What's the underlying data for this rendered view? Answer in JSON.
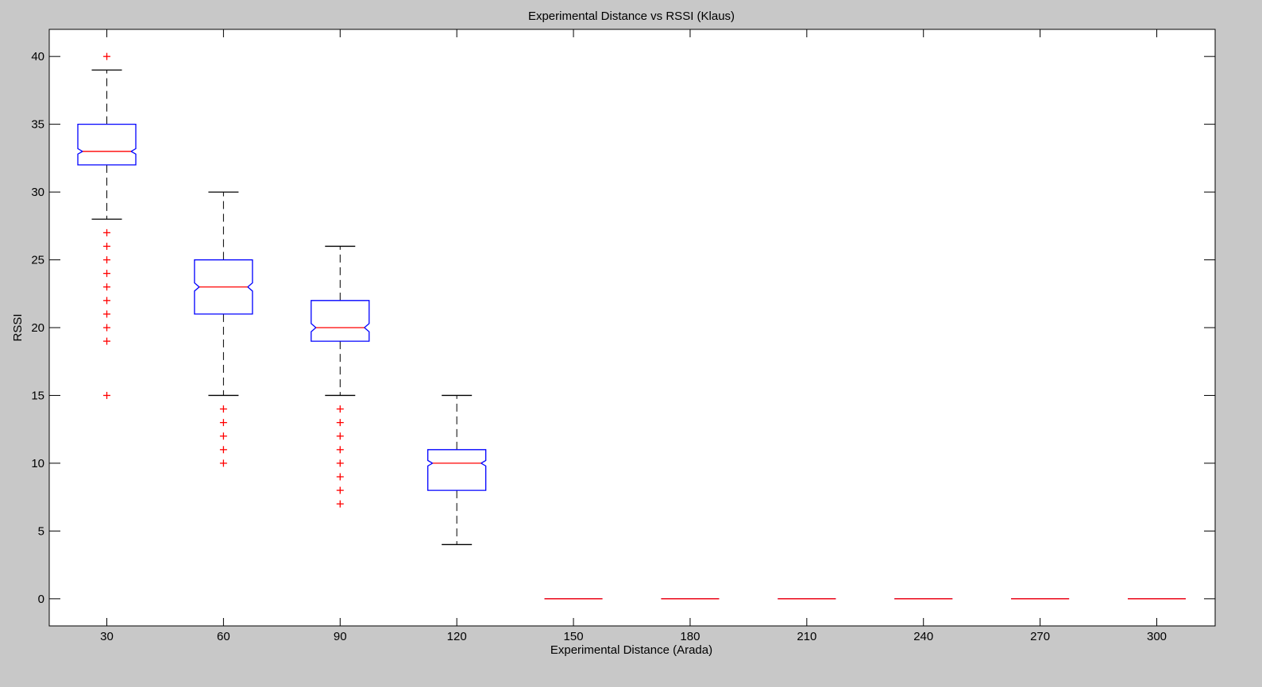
{
  "figure": {
    "background": "#c8c8c8",
    "axes_background": "#ffffff"
  },
  "chart_data": {
    "type": "box",
    "notched": true,
    "title": "Experimental Distance vs RSSI (Klaus)",
    "xlabel": "Experimental Distance (Arada)",
    "ylabel": "RSSI",
    "ylim": [
      -2,
      42
    ],
    "yticks": [
      0,
      5,
      10,
      15,
      20,
      25,
      30,
      35,
      40
    ],
    "grid": false,
    "colors": {
      "box": "#0000ff",
      "median": "#ff0000",
      "whisker": "#000000",
      "outlier": "#ff0000"
    },
    "categories": [
      "30",
      "60",
      "90",
      "120",
      "150",
      "180",
      "210",
      "240",
      "270",
      "300"
    ],
    "boxes": [
      {
        "category": "30",
        "whisker_low": 28,
        "q1": 32,
        "median": 33,
        "q3": 35,
        "whisker_high": 39,
        "notch_low": 32.8,
        "notch_high": 33.2,
        "outliers": [
          40,
          27,
          26,
          25,
          24,
          23,
          22,
          21,
          20,
          19,
          15
        ]
      },
      {
        "category": "60",
        "whisker_low": 15,
        "q1": 21,
        "median": 23,
        "q3": 25,
        "whisker_high": 30,
        "notch_low": 22.7,
        "notch_high": 23.3,
        "outliers": [
          14,
          13,
          12,
          11,
          10
        ]
      },
      {
        "category": "90",
        "whisker_low": 15,
        "q1": 19,
        "median": 20,
        "q3": 22,
        "whisker_high": 26,
        "notch_low": 19.7,
        "notch_high": 20.3,
        "outliers": [
          14,
          13,
          12,
          11,
          10,
          9,
          8,
          7
        ]
      },
      {
        "category": "120",
        "whisker_low": 4,
        "q1": 8,
        "median": 10,
        "q3": 11,
        "whisker_high": 15,
        "notch_low": 9.8,
        "notch_high": 10.2,
        "outliers": []
      },
      {
        "category": "150",
        "whisker_low": 0,
        "q1": 0,
        "median": 0,
        "q3": 0,
        "whisker_high": 0,
        "notch_low": 0,
        "notch_high": 0,
        "outliers": []
      },
      {
        "category": "180",
        "whisker_low": 0,
        "q1": 0,
        "median": 0,
        "q3": 0,
        "whisker_high": 0,
        "notch_low": 0,
        "notch_high": 0,
        "outliers": []
      },
      {
        "category": "210",
        "whisker_low": 0,
        "q1": 0,
        "median": 0,
        "q3": 0,
        "whisker_high": 0,
        "notch_low": 0,
        "notch_high": 0,
        "outliers": []
      },
      {
        "category": "240",
        "whisker_low": 0,
        "q1": 0,
        "median": 0,
        "q3": 0,
        "whisker_high": 0,
        "notch_low": 0,
        "notch_high": 0,
        "outliers": []
      },
      {
        "category": "270",
        "whisker_low": 0,
        "q1": 0,
        "median": 0,
        "q3": 0,
        "whisker_high": 0,
        "notch_low": 0,
        "notch_high": 0,
        "outliers": []
      },
      {
        "category": "300",
        "whisker_low": 0,
        "q1": 0,
        "median": 0,
        "q3": 0,
        "whisker_high": 0,
        "notch_low": 0,
        "notch_high": 0,
        "outliers": []
      }
    ]
  }
}
